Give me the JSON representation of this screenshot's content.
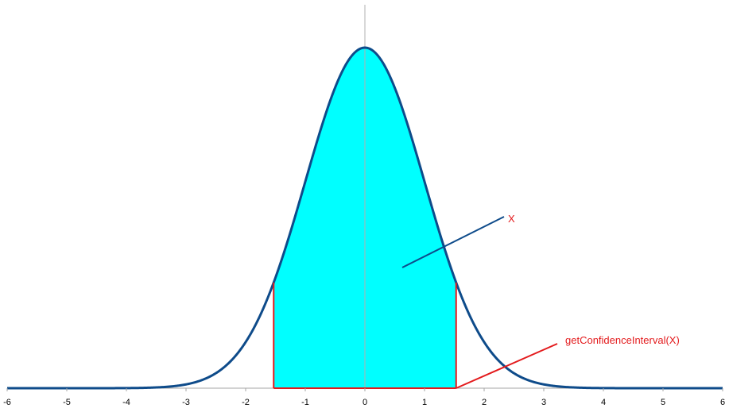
{
  "chart_data": {
    "type": "area",
    "title": "",
    "xlabel": "",
    "ylabel": "",
    "xlim": [
      -6,
      6
    ],
    "ylim": [
      0,
      0.42
    ],
    "x_ticks": [
      -6,
      -5,
      -4,
      -3,
      -2,
      -1,
      0,
      1,
      2,
      3,
      4,
      5,
      6
    ],
    "x_tick_labels": [
      "-6",
      "-5",
      "-4",
      "-3",
      "-2",
      "-1",
      "0",
      "1",
      "2",
      "3",
      "4",
      "5",
      "6"
    ],
    "grid": false,
    "legend": "none",
    "series": [
      {
        "distribution": "normal",
        "mean": 0,
        "std": 1,
        "peak": 0.3989,
        "color": "#0e4b8a"
      }
    ],
    "shaded_interval": {
      "from": -1.53,
      "to": 1.53,
      "fill_color": "#00ffff",
      "boundary_color": "#e31a1c"
    },
    "annotations": [
      {
        "label": "X",
        "color": "#e31a1c",
        "line_color": "#0e4b8a",
        "points_to": "shaded area"
      },
      {
        "label": "getConfidenceInterval(X)",
        "color": "#e31a1c",
        "line_color": "#e31a1c",
        "points_to": "interval upper bound"
      }
    ]
  }
}
